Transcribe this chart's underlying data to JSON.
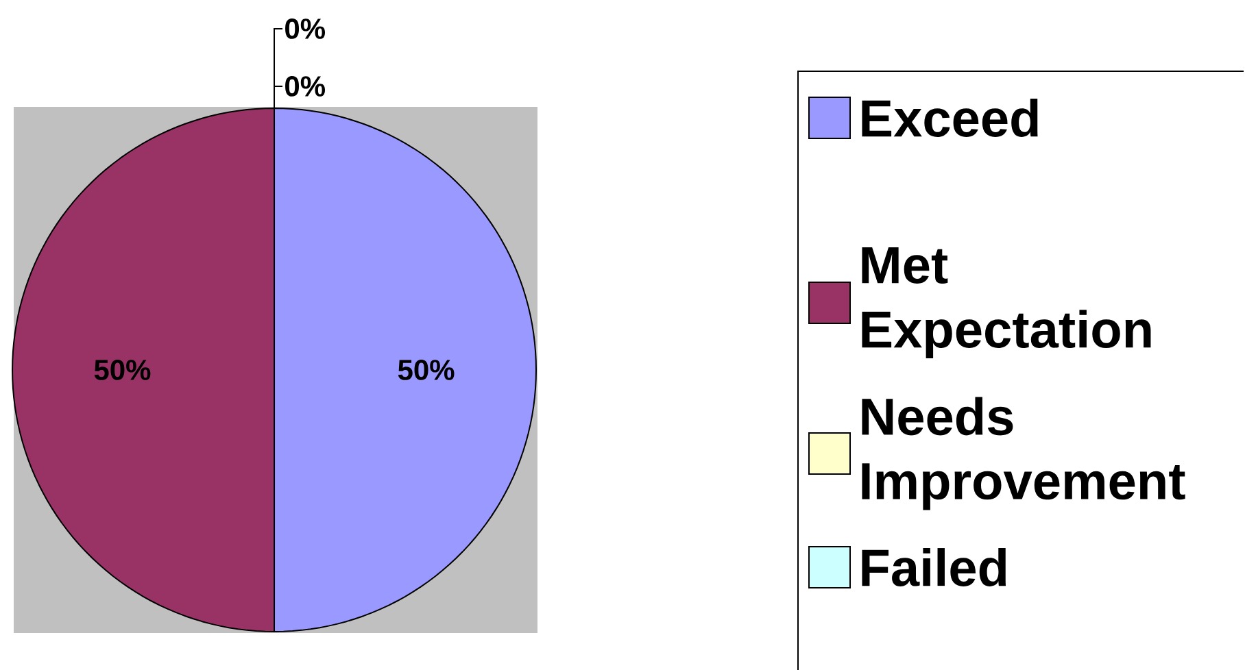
{
  "chart_data": {
    "type": "pie",
    "categories": [
      "Exceed",
      "Met Expectation",
      "Needs Improvement",
      "Failed"
    ],
    "values": [
      50,
      50,
      0,
      0
    ],
    "colors": [
      "#9999ff",
      "#993366",
      "#ffffcc",
      "#ccffff"
    ],
    "value_labels": [
      "50%",
      "50%",
      "0%",
      "0%"
    ],
    "legend": "right"
  }
}
